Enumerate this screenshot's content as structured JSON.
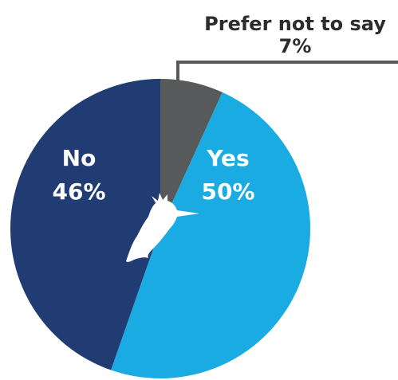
{
  "chart_data": {
    "type": "pie",
    "title": "",
    "slices": [
      {
        "label": "Prefer not to say",
        "value": 7,
        "value_label": "7%",
        "color": "#58595b"
      },
      {
        "label": "Yes",
        "value": 50,
        "value_label": "50%",
        "color": "#1aabe3"
      },
      {
        "label": "No",
        "value": 46,
        "value_label": "46%",
        "color": "#213c73"
      }
    ],
    "start_direction": "top",
    "direction": "clockwise",
    "legend": "none",
    "label_placement": {
      "Prefer not to say": "callout-above",
      "Yes": "inside",
      "No": "inside"
    },
    "watermark_icon": "kingfisher-bird-silhouette"
  }
}
